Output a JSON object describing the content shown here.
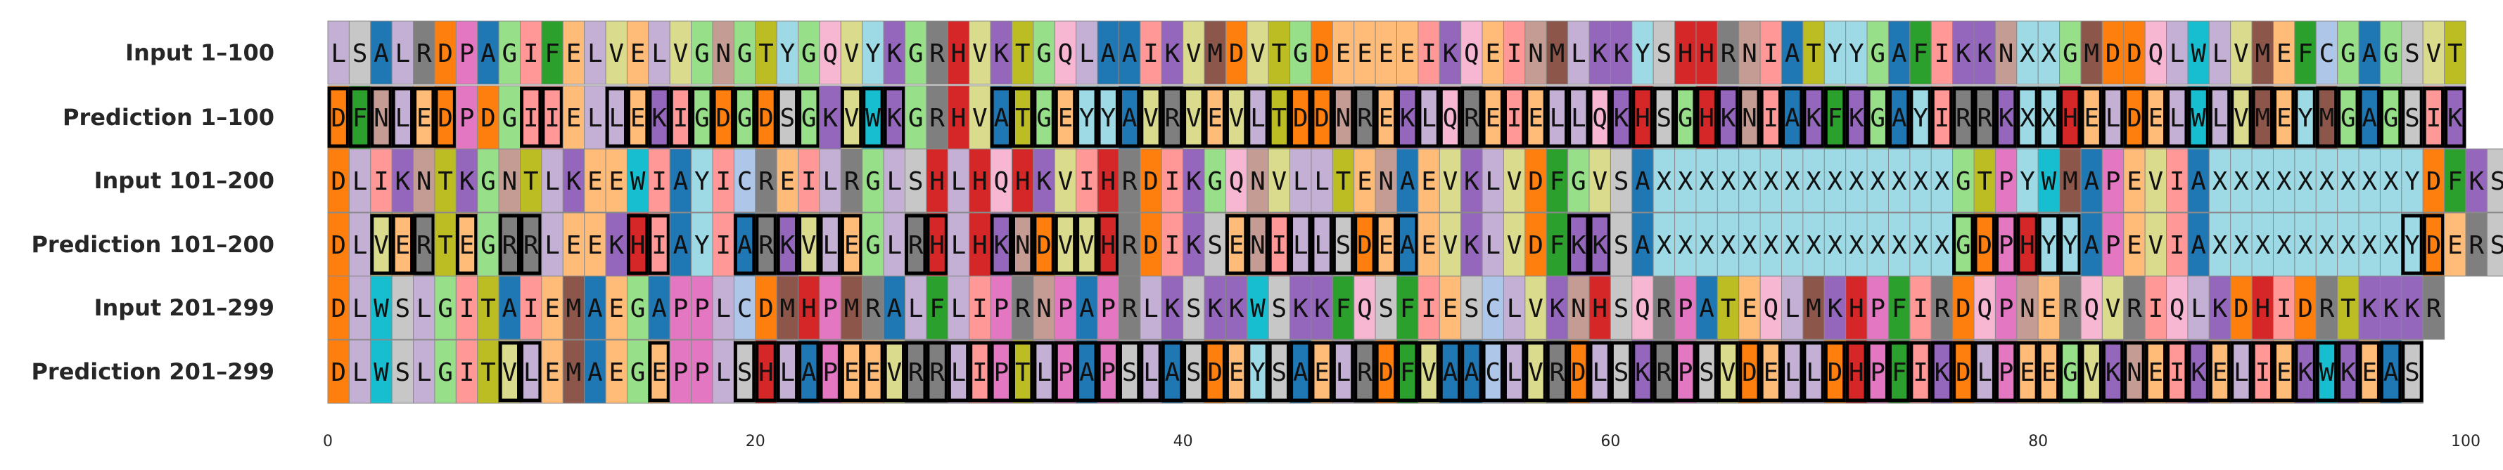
{
  "chart_data": {
    "type": "table",
    "title": "",
    "xlabel": "",
    "ylabel": "",
    "xlim": [
      0,
      100
    ],
    "x_ticks": [
      0,
      20,
      40,
      60,
      80,
      100
    ],
    "grid": false,
    "legend": "none",
    "rows": [
      {
        "label": "Input 1–100",
        "sequence": "LSALRDPAGIFELVELVGNGTYGQVYKGRHVKTGQLAAIKVMDVTGDEEEEIKQEINMLKKYSHHRNIATYYGAFIKKNXXGMDDQLWLVMEFCGAGSVT",
        "mismatches": []
      },
      {
        "label": "Prediction 1–100",
        "sequence": "DFNLEDPDGIIELLEKIGDGDSGKVWKGRHVATGEYYAVRVEVLTDDNREKLQREIELLQKHSGHKNIAKFKGAYIRRKXXHELDELWLVMEYMGAGSIK",
        "mismatches": [
          0,
          1,
          2,
          3,
          4,
          5,
          9,
          10,
          13,
          14,
          15,
          16,
          17,
          18,
          19,
          20,
          21,
          22,
          24,
          25,
          26,
          31,
          32,
          33,
          34,
          35,
          36,
          37,
          38,
          39,
          40,
          41,
          42,
          43,
          44,
          45,
          46,
          47,
          48,
          49,
          50,
          51,
          52,
          53,
          54,
          55,
          56,
          57,
          58,
          59,
          60,
          61,
          62,
          63,
          64,
          65,
          66,
          67,
          68,
          69,
          70,
          71,
          72,
          73,
          74,
          75,
          76,
          77,
          78,
          79,
          80,
          81,
          82,
          83,
          84,
          85,
          86,
          87,
          88,
          89,
          90,
          91,
          92,
          93,
          94,
          95,
          96,
          97,
          98,
          99
        ]
      },
      {
        "label": "Input 101–200",
        "sequence": "DLIKNTKGNTLKEEWIAYICREILRGLSHLHQHKVIHRDIKGQNVLLTENAEVKLVDFGVSAXXXXXXXXXXXXXXGTPYWMAPEVIAXXXXXXXXXYDFKS",
        "mismatches": []
      },
      {
        "label": "Prediction 101–200",
        "sequence": "DLVERTEGRRLEEKHIAYIARKVLEGLRHLHKNDVVHRDIKSENILLSDEAEVKLVDFKKSAXXXXXXXXXXXXXXGDPHYYAPEVIAXXXXXXXXXYDERS",
        "mismatches": [
          2,
          3,
          4,
          6,
          8,
          9,
          14,
          15,
          19,
          20,
          21,
          22,
          23,
          24,
          27,
          28,
          31,
          32,
          33,
          34,
          35,
          36,
          42,
          43,
          44,
          45,
          46,
          47,
          48,
          49,
          50,
          58,
          59,
          76,
          77,
          78,
          79,
          80,
          81,
          97,
          98
        ]
      },
      {
        "label": "Input 201–299",
        "sequence": "DLWSLGITAIEMAEGAPPLCDMHPMRALFLIPRNPAPRLKSKKWSKKFQSFIESCLVKNHSQRPATEQLMKHPFIRDQPNERQVRIQLKDHIDRTKKKR",
        "mismatches": []
      },
      {
        "label": "Prediction 201–299",
        "sequence": "DLWSLGITVLEMAEGEPPLSHLAPEEVRRLIPTLPAPSLASDEYSAELRDFVAACLVRDLSKRPSVDELLDHPFIKDLPEEGVKNEIKELIEKWKEAS",
        "mismatches": [
          8,
          9,
          15,
          19,
          20,
          21,
          22,
          23,
          24,
          25,
          26,
          27,
          28,
          29,
          30,
          31,
          32,
          33,
          34,
          35,
          36,
          37,
          38,
          39,
          40,
          41,
          42,
          43,
          44,
          45,
          46,
          47,
          48,
          49,
          50,
          51,
          52,
          53,
          54,
          55,
          56,
          57,
          58,
          59,
          60,
          61,
          62,
          63,
          64,
          65,
          66,
          67,
          68,
          69,
          70,
          71,
          72,
          73,
          74,
          75,
          76,
          77,
          78,
          79,
          80,
          81,
          82,
          83,
          84,
          85,
          86,
          87,
          88,
          89,
          90,
          91,
          92,
          93,
          94,
          95,
          96,
          97
        ]
      }
    ]
  },
  "residue_colors": {
    "A": "#1f77b4",
    "C": "#aec7e8",
    "D": "#ff7f0e",
    "E": "#ffbb78",
    "F": "#2ca02c",
    "G": "#98df8a",
    "H": "#d62728",
    "I": "#ff9896",
    "K": "#9467bd",
    "L": "#c5b0d5",
    "M": "#8c564b",
    "N": "#c49c94",
    "P": "#e377c2",
    "Q": "#f7b6d2",
    "R": "#7f7f7f",
    "S": "#c7c7c7",
    "T": "#bcbd22",
    "V": "#dbdb8d",
    "W": "#17becf",
    "Y": "#9edae5",
    "X": "#9edae5"
  }
}
